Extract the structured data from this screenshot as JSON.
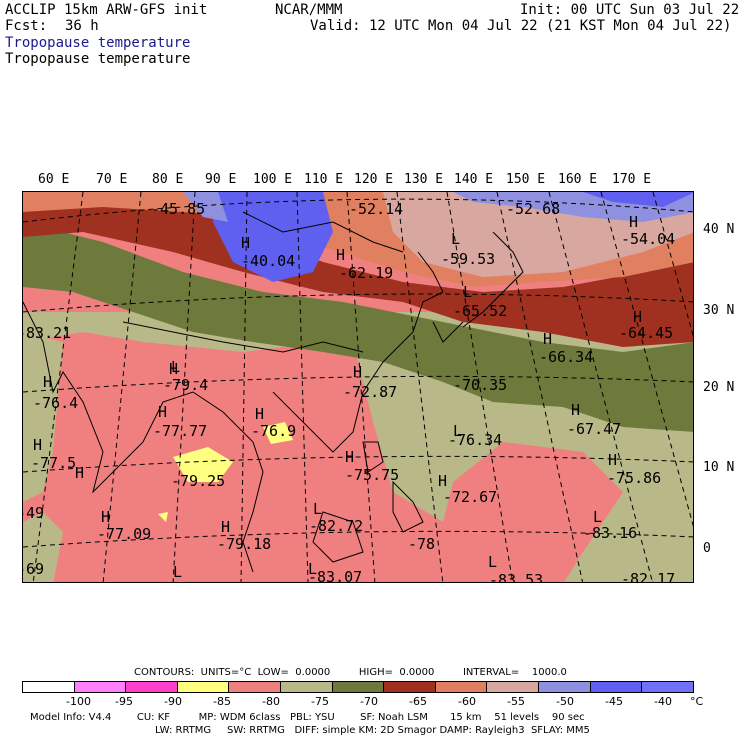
{
  "header": {
    "model": "ACCLIP 15km ARW-GFS init",
    "org": "NCAR/MMM",
    "init": "Init: 00 UTC Sun 03 Jul 22",
    "fcst_label": "Fcst:",
    "fcst_value": "36 h",
    "valid": "Valid: 12 UTC Mon 04 Jul 22 (21 KST Mon 04 Jul 22)",
    "field_shaded": "Tropopause temperature",
    "field_contour": "Tropopause temperature"
  },
  "map": {
    "lon_labels": [
      "60 E",
      "70 E",
      "80 E",
      "90 E",
      "100 E",
      "110 E",
      "120 E",
      "130 E",
      "140 E",
      "150 E",
      "160 E",
      "170 E"
    ],
    "lat_labels": [
      "40 N",
      "30 N",
      "20 N",
      "10 N",
      "0"
    ],
    "highs": [
      {
        "text": "H"
      },
      {
        "text": "H"
      },
      {
        "text": "H"
      },
      {
        "text": "H"
      },
      {
        "text": "H"
      },
      {
        "text": "H"
      },
      {
        "text": "H"
      },
      {
        "text": "H"
      },
      {
        "text": "H"
      },
      {
        "text": "H"
      },
      {
        "text": "H"
      },
      {
        "text": "H"
      },
      {
        "text": "H"
      },
      {
        "text": "H"
      },
      {
        "text": "H"
      },
      {
        "text": "H"
      },
      {
        "text": "H"
      },
      {
        "text": "H"
      }
    ],
    "lows": [
      {
        "text": "L"
      },
      {
        "text": "L"
      },
      {
        "text": "L"
      },
      {
        "text": "L"
      },
      {
        "text": "L"
      },
      {
        "text": "L"
      },
      {
        "text": "L"
      },
      {
        "text": "L"
      },
      {
        "text": "L"
      }
    ],
    "values": [
      "-45.85",
      "-52.14",
      "-52.68",
      "-54.04",
      "-40.04",
      "-62.19",
      "-59.53",
      "-65.52",
      "-64.45",
      "-66.34",
      "-83.21",
      "-79.4",
      "-72.87",
      "-70.35",
      "-76.4",
      "-77.77",
      "-76.9",
      "-67.47",
      "-76.34",
      "-77.5",
      "-79.25",
      "-75.75",
      "-75.86",
      "-72.67",
      "-77.09",
      "-82.72",
      "-83.16",
      "-79.18",
      "-78",
      "-83.07",
      "-83.53",
      "-82.17",
      "-69",
      "-49"
    ]
  },
  "legend": {
    "contours_line": "CONTOURS:  UNITS=°C  LOW=  0.0000         HIGH=  0.0000         INTERVAL=    1000.0",
    "ticks": [
      "-100",
      "-95",
      "-90",
      "-85",
      "-80",
      "-75",
      "-70",
      "-65",
      "-60",
      "-55",
      "-50",
      "-45",
      "-40",
      "°C"
    ],
    "colors": [
      "#ffffff",
      "#ff80ff",
      "#ff40cc",
      "#ffff80",
      "#f08080",
      "#b8b888",
      "#6e7a3c",
      "#a03020",
      "#e08060",
      "#d8a8a0",
      "#9090e0",
      "#6060f0",
      "#7070f8"
    ]
  },
  "footer": {
    "line1": "Model Info: V4.4        CU: KF         MP: WDM 6class   PBL: YSU        SF: Noah LSM       15 km    51 levels    90 sec",
    "line2": "LW: RRTMG     SW: RRTMG   DIFF: simple KM: 2D Smagor DAMP: Rayleigh3  SFLAY: MM5"
  }
}
